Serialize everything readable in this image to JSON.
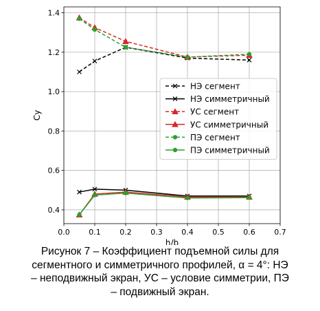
{
  "chart_data": {
    "type": "line",
    "xlabel": "h/b",
    "ylabel": "Cy",
    "xlim": [
      0.0,
      0.7
    ],
    "ylim": [
      0.33,
      1.43
    ],
    "xticks": [
      "0.0",
      "0.1",
      "0.2",
      "0.3",
      "0.4",
      "0.5",
      "0.6",
      "0.7"
    ],
    "xtick_values": [
      0.0,
      0.1,
      0.2,
      0.3,
      0.4,
      0.5,
      0.6,
      0.7
    ],
    "yticks": [
      "0.4",
      "0.6",
      "0.8",
      "1.0",
      "1.2",
      "1.4"
    ],
    "ytick_values": [
      0.4,
      0.6,
      0.8,
      1.0,
      1.2,
      1.4
    ],
    "grid": true,
    "legend_position": "center-right",
    "x": [
      0.05,
      0.1,
      0.2,
      0.4,
      0.6
    ],
    "series": [
      {
        "name": "НЭ сегмент",
        "values": [
          1.1,
          1.155,
          1.225,
          1.17,
          1.16
        ],
        "color": "#000000",
        "dashed": true,
        "marker": "x"
      },
      {
        "name": "НЭ симметричный",
        "values": [
          0.49,
          0.505,
          0.5,
          0.47,
          0.47
        ],
        "color": "#000000",
        "dashed": false,
        "marker": "x"
      },
      {
        "name": "УС сегмент",
        "values": [
          1.375,
          1.325,
          1.255,
          1.175,
          1.185
        ],
        "color": "#d62728",
        "dashed": true,
        "marker": "triangle"
      },
      {
        "name": "УС симметричный",
        "values": [
          0.375,
          0.48,
          0.49,
          0.465,
          0.465
        ],
        "color": "#d62728",
        "dashed": false,
        "marker": "triangle"
      },
      {
        "name": "ПЭ сегмент",
        "values": [
          1.37,
          1.315,
          1.225,
          1.175,
          1.19
        ],
        "color": "#2ca02c",
        "dashed": true,
        "marker": "circle"
      },
      {
        "name": "ПЭ симметричный",
        "values": [
          0.375,
          0.475,
          0.485,
          0.46,
          0.462
        ],
        "color": "#2ca02c",
        "dashed": false,
        "marker": "circle"
      }
    ]
  },
  "caption": {
    "line1": "Рисунок 7 – Коэффициент подъемной силы для",
    "line2": "сегментного и симметричного профилей, α = 4°: НЭ",
    "line3": "– неподвижный экран, УС – условие симметрии, ПЭ",
    "line4": "– подвижный экран."
  }
}
